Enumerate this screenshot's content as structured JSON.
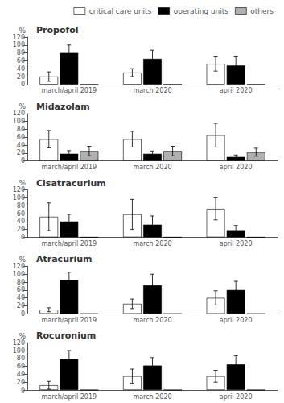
{
  "chart_data": [
    {
      "type": "bar",
      "title": "Propofol",
      "ylabel": "%",
      "categories": [
        "march/april 2019",
        "march 2020",
        "april 2020"
      ],
      "series": [
        {
          "name": "critical care units",
          "color": "white",
          "values": [
            20,
            30,
            52
          ],
          "errors": [
            12,
            10,
            18
          ]
        },
        {
          "name": "operating units",
          "color": "black",
          "values": [
            80,
            65,
            48
          ],
          "errors": [
            20,
            22,
            22
          ]
        },
        {
          "name": "others",
          "color": "#b0b0b0",
          "values": [
            0,
            0,
            0
          ],
          "errors": [
            0,
            0,
            0
          ]
        }
      ],
      "ylim": [
        0,
        120
      ],
      "yticks": [
        0,
        20,
        40,
        60,
        80,
        100,
        120
      ],
      "grid": false,
      "legend": "upper right"
    },
    {
      "type": "bar",
      "title": "Midazolam",
      "ylabel": "%",
      "categories": [
        "march/april 2019",
        "march 2020",
        "april 2020"
      ],
      "series": [
        {
          "name": "critical care units",
          "color": "white",
          "values": [
            55,
            55,
            65
          ],
          "errors": [
            22,
            20,
            30
          ]
        },
        {
          "name": "operating units",
          "color": "black",
          "values": [
            18,
            18,
            10
          ],
          "errors": [
            8,
            7,
            5
          ]
        },
        {
          "name": "others",
          "color": "#b0b0b0",
          "values": [
            25,
            25,
            22
          ],
          "errors": [
            12,
            12,
            10
          ]
        }
      ],
      "ylim": [
        0,
        120
      ],
      "yticks": [
        0,
        20,
        40,
        60,
        80,
        100,
        120
      ],
      "grid": false
    },
    {
      "type": "bar",
      "title": "Cisatracurium",
      "ylabel": "%",
      "categories": [
        "march/april 2019",
        "march 2020",
        "april 2020"
      ],
      "series": [
        {
          "name": "critical care units",
          "color": "white",
          "values": [
            52,
            58,
            72
          ],
          "errors": [
            35,
            38,
            28
          ]
        },
        {
          "name": "operating units",
          "color": "black",
          "values": [
            40,
            32,
            18
          ],
          "errors": [
            18,
            22,
            12
          ]
        },
        {
          "name": "others",
          "color": "#b0b0b0",
          "values": [
            0,
            0,
            0
          ],
          "errors": [
            0,
            0,
            0
          ]
        }
      ],
      "ylim": [
        0,
        120
      ],
      "yticks": [
        0,
        20,
        40,
        60,
        80,
        100,
        120
      ],
      "grid": false
    },
    {
      "type": "bar",
      "title": "Atracurium",
      "ylabel": "%",
      "categories": [
        "march/april 2019",
        "march 2020",
        "april 2020"
      ],
      "series": [
        {
          "name": "critical care units",
          "color": "white",
          "values": [
            10,
            25,
            40
          ],
          "errors": [
            5,
            12,
            18
          ]
        },
        {
          "name": "operating units",
          "color": "black",
          "values": [
            85,
            72,
            60
          ],
          "errors": [
            20,
            28,
            22
          ]
        },
        {
          "name": "others",
          "color": "#b0b0b0",
          "values": [
            0,
            0,
            0
          ],
          "errors": [
            0,
            0,
            0
          ]
        }
      ],
      "ylim": [
        0,
        120
      ],
      "yticks": [
        0,
        20,
        40,
        60,
        80,
        100,
        120
      ],
      "grid": false
    },
    {
      "type": "bar",
      "title": "Rocuronium",
      "ylabel": "%",
      "categories": [
        "march/april 2019",
        "march 2020",
        "april 2020"
      ],
      "series": [
        {
          "name": "critical care units",
          "color": "white",
          "values": [
            12,
            35,
            35
          ],
          "errors": [
            10,
            18,
            15
          ]
        },
        {
          "name": "operating units",
          "color": "black",
          "values": [
            78,
            62,
            65
          ],
          "errors": [
            22,
            20,
            22
          ]
        },
        {
          "name": "others",
          "color": "#b0b0b0",
          "values": [
            0,
            0,
            0
          ],
          "errors": [
            0,
            0,
            0
          ]
        }
      ],
      "ylim": [
        0,
        120
      ],
      "yticks": [
        0,
        20,
        40,
        60,
        80,
        100,
        120
      ],
      "grid": false
    }
  ]
}
